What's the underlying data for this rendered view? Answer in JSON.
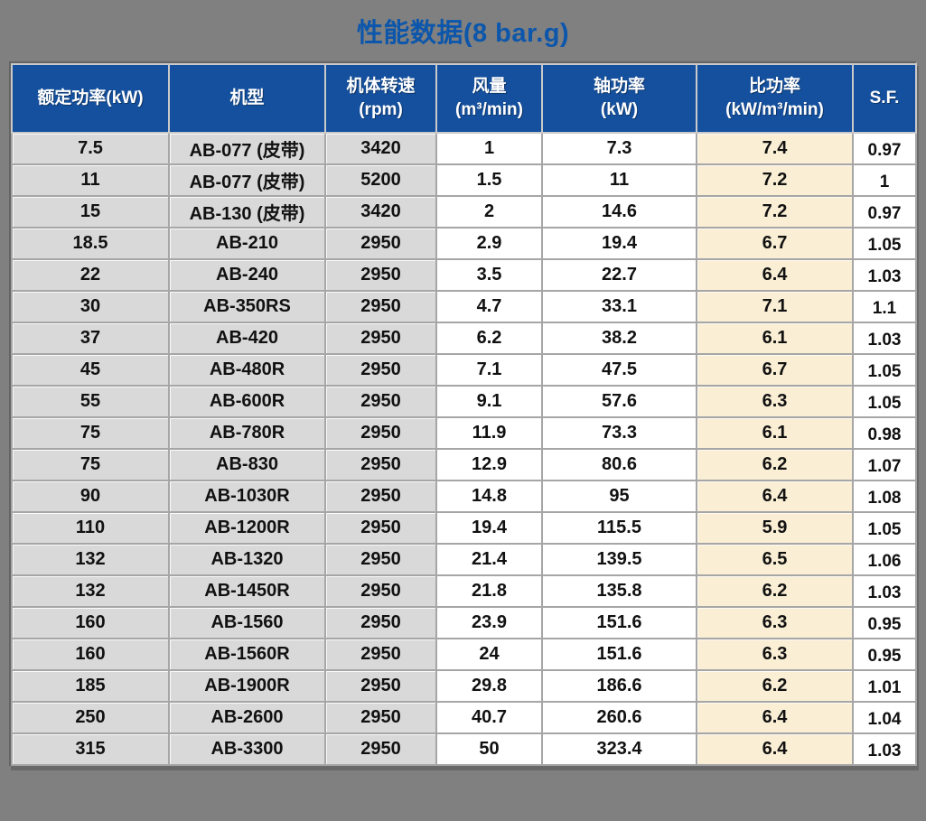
{
  "title": "性能数据(8 bar.g)",
  "colors": {
    "page_background": "#808080",
    "title_text": "#0C56AB",
    "header_background": "#14509E",
    "header_text": "#FFFFFF",
    "gray_column_fill": "#D9D9D9",
    "white_column_fill": "#FFFFFF",
    "specific_power_column_fill": "#FAEFD5",
    "gridline": "#A6A6A6"
  },
  "chart_data": {
    "type": "table",
    "title": "性能数据(8 bar.g)",
    "column_keys": [
      "rated-power",
      "model",
      "body-speed",
      "air-flow",
      "shaft-power",
      "specific-power",
      "service-factor"
    ],
    "columns": [
      {
        "title": "额定功率(kW)",
        "unit": ""
      },
      {
        "title": "机型",
        "unit": ""
      },
      {
        "title": "机体转速",
        "unit": "(rpm)"
      },
      {
        "title": "风量",
        "unit": "(m³/min)"
      },
      {
        "title": "轴功率",
        "unit": "(kW)"
      },
      {
        "title": "比功率",
        "unit": "(kW/m³/min)"
      },
      {
        "title": "S.F.",
        "unit": ""
      }
    ],
    "rows": [
      [
        "7.5",
        "AB-077 (皮带)",
        "3420",
        "1",
        "7.3",
        "7.4",
        "0.97"
      ],
      [
        "11",
        "AB-077 (皮带)",
        "5200",
        "1.5",
        "11",
        "7.2",
        "1"
      ],
      [
        "15",
        "AB-130 (皮带)",
        "3420",
        "2",
        "14.6",
        "7.2",
        "0.97"
      ],
      [
        "18.5",
        "AB-210",
        "2950",
        "2.9",
        "19.4",
        "6.7",
        "1.05"
      ],
      [
        "22",
        "AB-240",
        "2950",
        "3.5",
        "22.7",
        "6.4",
        "1.03"
      ],
      [
        "30",
        "AB-350RS",
        "2950",
        "4.7",
        "33.1",
        "7.1",
        "1.1"
      ],
      [
        "37",
        "AB-420",
        "2950",
        "6.2",
        "38.2",
        "6.1",
        "1.03"
      ],
      [
        "45",
        "AB-480R",
        "2950",
        "7.1",
        "47.5",
        "6.7",
        "1.05"
      ],
      [
        "55",
        "AB-600R",
        "2950",
        "9.1",
        "57.6",
        "6.3",
        "1.05"
      ],
      [
        "75",
        "AB-780R",
        "2950",
        "11.9",
        "73.3",
        "6.1",
        "0.98"
      ],
      [
        "75",
        "AB-830",
        "2950",
        "12.9",
        "80.6",
        "6.2",
        "1.07"
      ],
      [
        "90",
        "AB-1030R",
        "2950",
        "14.8",
        "95",
        "6.4",
        "1.08"
      ],
      [
        "110",
        "AB-1200R",
        "2950",
        "19.4",
        "115.5",
        "5.9",
        "1.05"
      ],
      [
        "132",
        "AB-1320",
        "2950",
        "21.4",
        "139.5",
        "6.5",
        "1.06"
      ],
      [
        "132",
        "AB-1450R",
        "2950",
        "21.8",
        "135.8",
        "6.2",
        "1.03"
      ],
      [
        "160",
        "AB-1560",
        "2950",
        "23.9",
        "151.6",
        "6.3",
        "0.95"
      ],
      [
        "160",
        "AB-1560R",
        "2950",
        "24",
        "151.6",
        "6.3",
        "0.95"
      ],
      [
        "185",
        "AB-1900R",
        "2950",
        "29.8",
        "186.6",
        "6.2",
        "1.01"
      ],
      [
        "250",
        "AB-2600",
        "2950",
        "40.7",
        "260.6",
        "6.4",
        "1.04"
      ],
      [
        "315",
        "AB-3300",
        "2950",
        "50",
        "323.4",
        "6.4",
        "1.03"
      ]
    ]
  }
}
